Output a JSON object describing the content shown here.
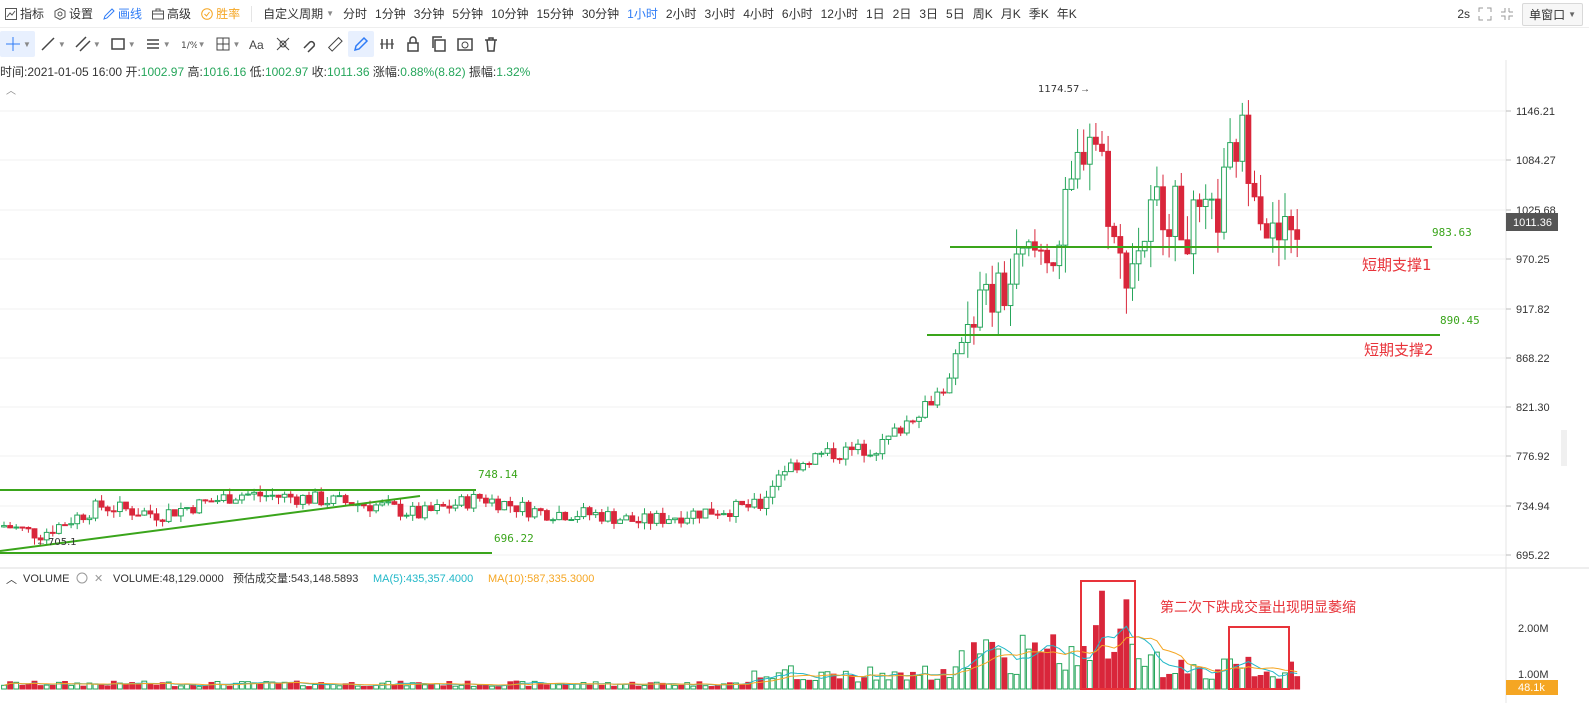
{
  "toolbar": {
    "indicators": "指标",
    "settings": "设置",
    "draw": "画线",
    "advanced": "高级",
    "winrate": "胜率",
    "custom_period": "自定义周期",
    "periods": [
      "分时",
      "1分钟",
      "3分钟",
      "5分钟",
      "10分钟",
      "15分钟",
      "30分钟",
      "1小时",
      "2小时",
      "3小时",
      "4小时",
      "6小时",
      "12小时",
      "1日",
      "2日",
      "3日",
      "5日",
      "周K",
      "月K",
      "季K",
      "年K"
    ],
    "active_period": "1小时",
    "refresh": "2s",
    "window_mode": "单窗口"
  },
  "info": {
    "time_label": "时间:",
    "time": "2021-01-05 16:00",
    "open_label": "开:",
    "open": "1002.97",
    "high_label": "高:",
    "high": "1016.16",
    "low_label": "低:",
    "low": "1002.97",
    "close_label": "收:",
    "close": "1011.36",
    "change_label": "涨幅:",
    "change": "0.88%(8.82)",
    "amp_label": "振幅:",
    "amp": "1.32%"
  },
  "price_axis": {
    "ticks": [
      "1146.21",
      "1084.27",
      "1025.68",
      "970.25",
      "917.82",
      "868.22",
      "821.30",
      "776.92",
      "734.94",
      "695.22"
    ],
    "current": "1011.36"
  },
  "volume_axis": {
    "ticks": [
      "2.00M",
      "1.00M"
    ],
    "current": "48.1k"
  },
  "volume_info": {
    "title": "VOLUME",
    "value": "VOLUME:48,129.0000",
    "estimate": "预估成交量:543,148.5893",
    "ma5": "MA(5):435,357.4000",
    "ma10": "MA(10):587,335.3000"
  },
  "annotations": {
    "high_marker": "1174.57",
    "low_marker": "705.1",
    "level_748": "748.14",
    "level_696": "696.22",
    "level_983": "983.63",
    "level_890": "890.45",
    "support1": "短期支撑1",
    "support2": "短期支撑2",
    "volume_note": "第二次下跌成交量出现明显萎缩"
  },
  "colors": {
    "up": "#26a65b",
    "down": "#d9263b",
    "line": "#3aa51b",
    "accent": "#2f7cf6",
    "box": "#e8333a",
    "ma5": "#22b8c8",
    "ma10": "#f5a623"
  }
}
